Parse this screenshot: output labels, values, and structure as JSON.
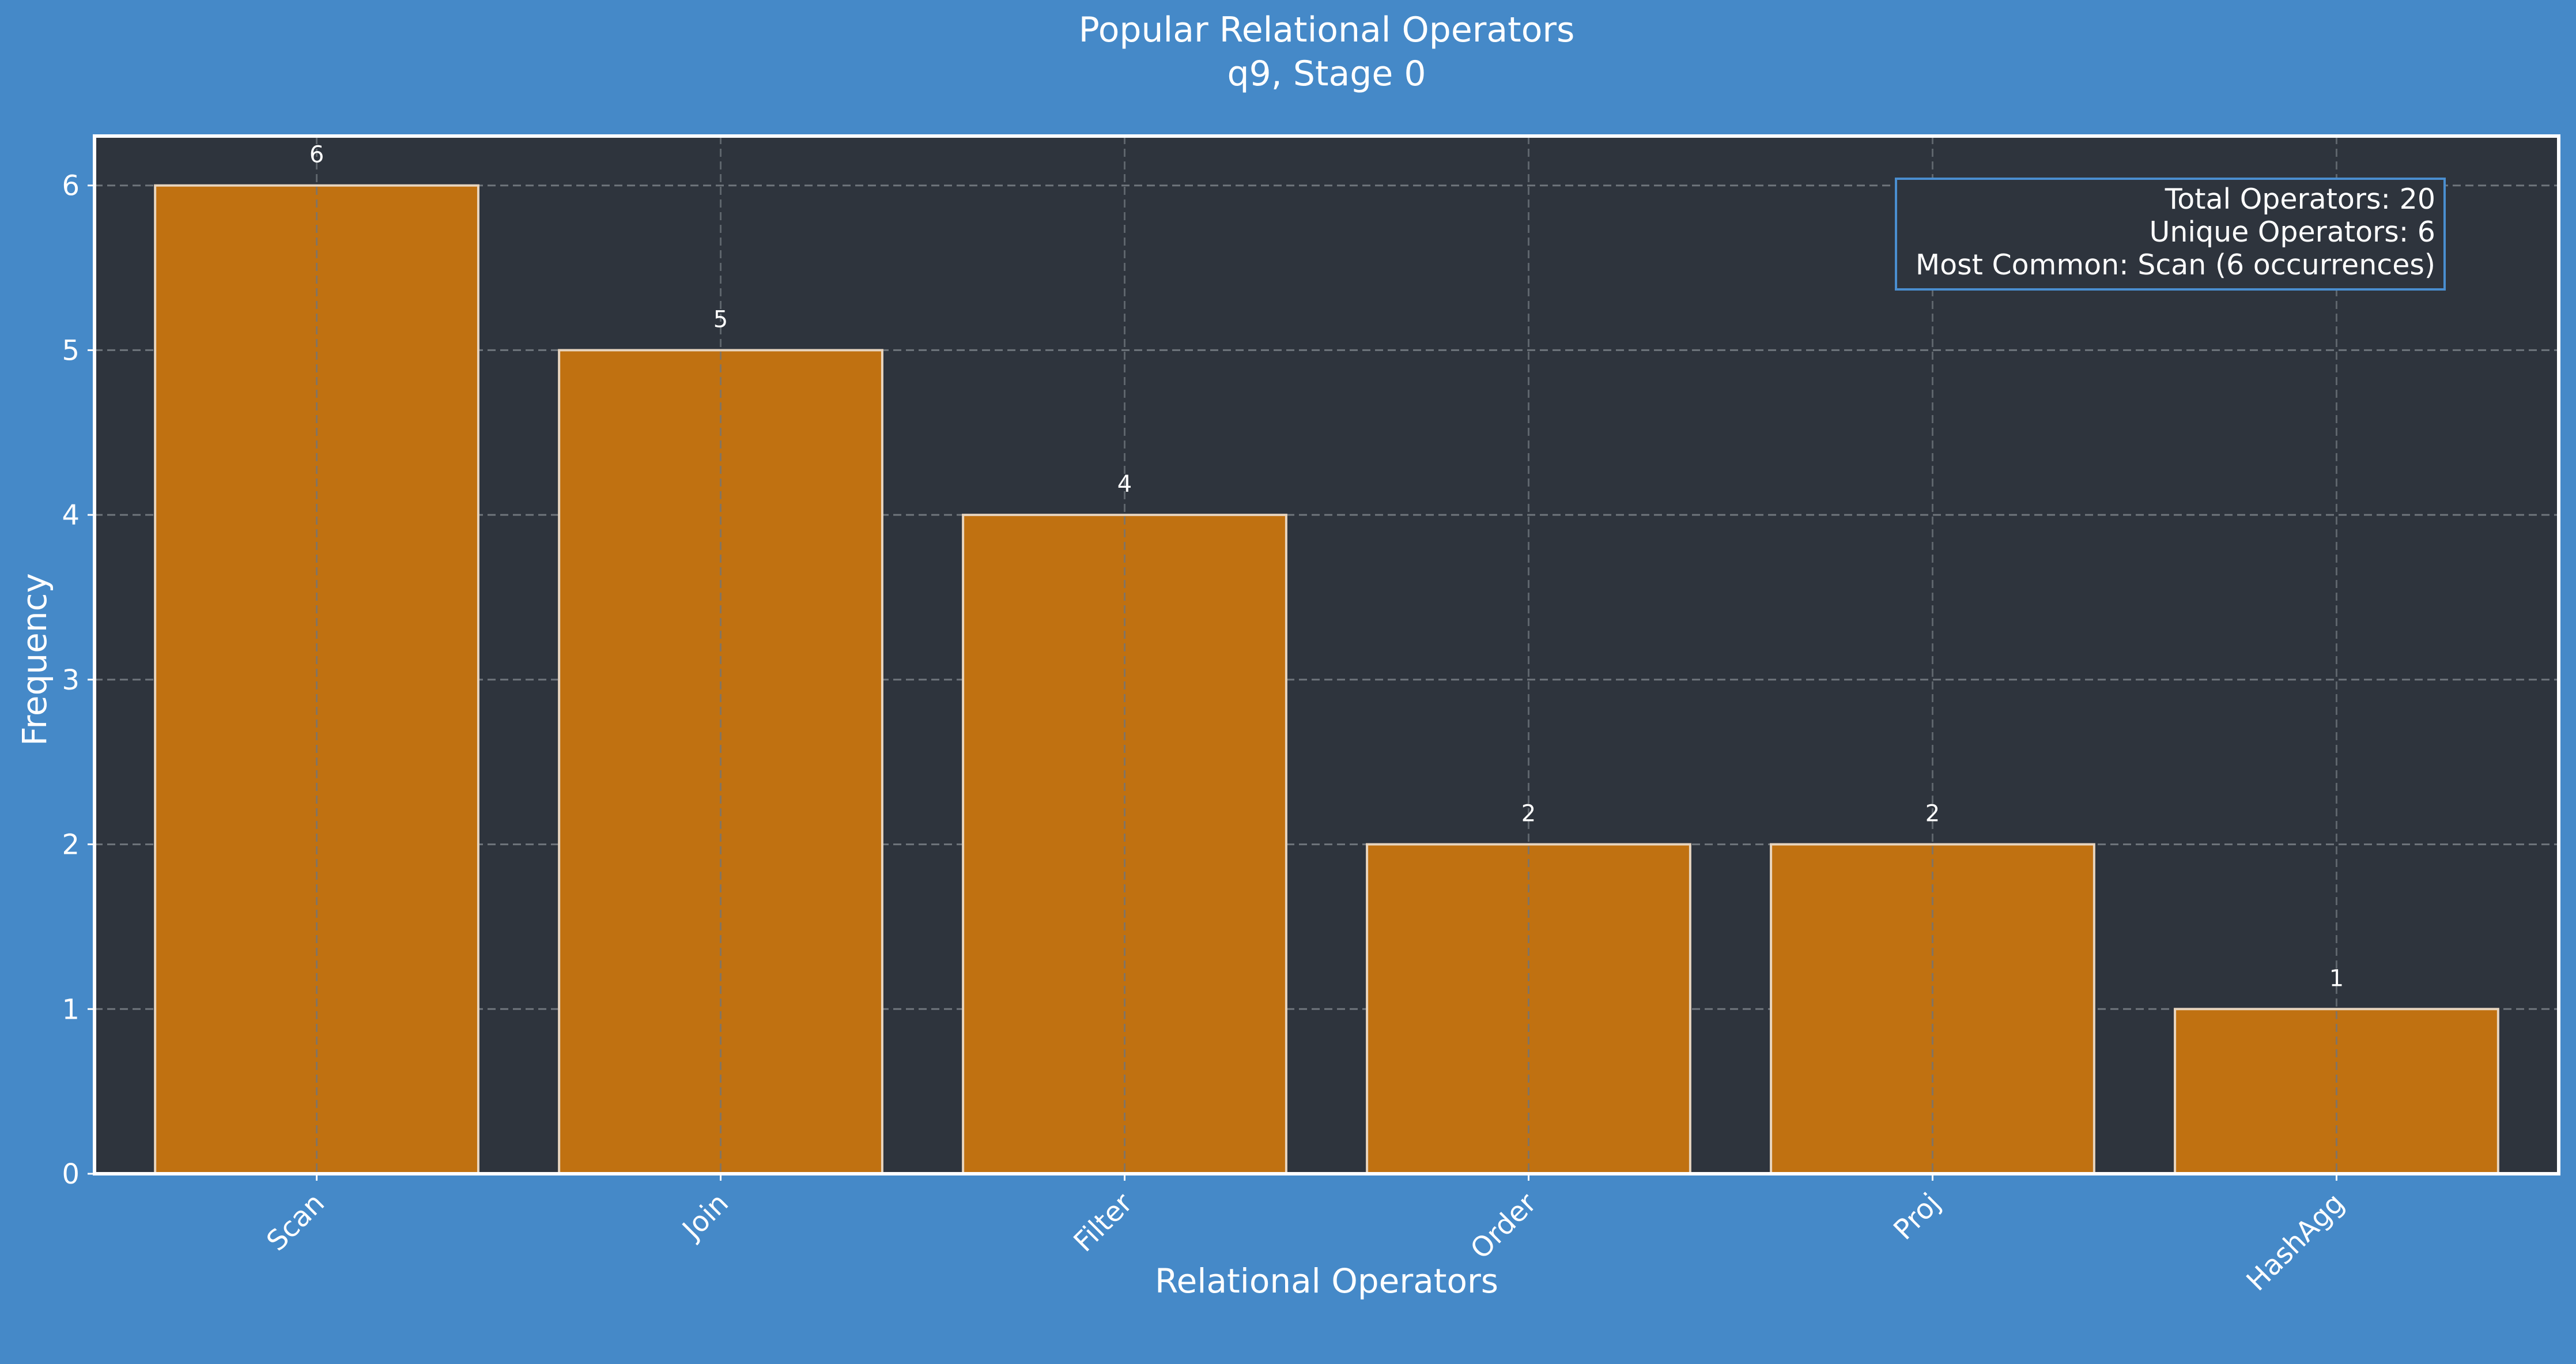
{
  "colors": {
    "background": "#4589c8",
    "plot_background": "#2e343d",
    "bar_fill": "#c07111",
    "bar_stroke": "#e8d5bf",
    "grid": "#6f757c",
    "text": "#ffffff",
    "stats_border": "#4a8ed0"
  },
  "chart_data": {
    "type": "bar",
    "title": "Popular Relational Operators",
    "subtitle": "q9, Stage 0",
    "xlabel": "Relational Operators",
    "ylabel": "Frequency",
    "categories": [
      "Scan",
      "Join",
      "Filter",
      "Order",
      "Proj",
      "HashAgg"
    ],
    "values": [
      6,
      5,
      4,
      2,
      2,
      1
    ],
    "data_labels": [
      "6",
      "5",
      "4",
      "2",
      "2",
      "1"
    ],
    "ylim": [
      0,
      6.3
    ],
    "yticks": [
      0,
      1,
      2,
      3,
      4,
      5,
      6
    ],
    "grid": true,
    "stats_box": {
      "position": "top-right",
      "lines": [
        "Total Operators: 20",
        "Unique Operators: 6",
        "Most Common: Scan (6 occurrences)"
      ]
    }
  }
}
